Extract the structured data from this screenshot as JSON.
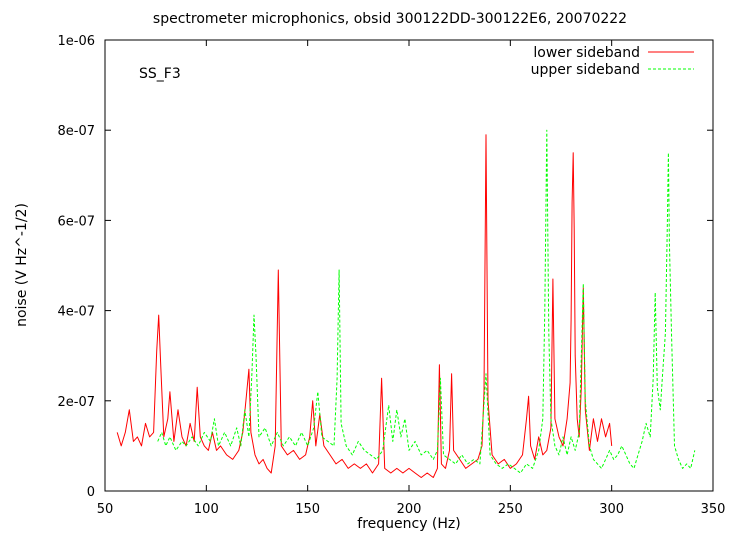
{
  "chart_data": {
    "type": "line",
    "title": "spectrometer microphonics, obsid 300122DD-300122E6, 20070222",
    "xlabel": "frequency (Hz)",
    "ylabel": "noise (V Hz^-1/2)",
    "annotation": "SS_F3",
    "xlim": [
      50,
      350
    ],
    "ylim": [
      0,
      1e-06
    ],
    "x_ticks": [
      50,
      100,
      150,
      200,
      250,
      300,
      350
    ],
    "x_tick_labels": [
      "50",
      "100",
      "150",
      "200",
      "250",
      "300",
      "350"
    ],
    "y_ticks": [
      0,
      2e-07,
      4e-07,
      6e-07,
      8e-07,
      1e-06
    ],
    "y_tick_labels": [
      "0",
      "2e-07",
      "4e-07",
      "6e-07",
      "8e-07",
      "1e-06"
    ],
    "grid": false,
    "legend_position": "top-right",
    "colors": {
      "lower": "#ff0000",
      "upper": "#00ff00",
      "axis": "#000000"
    },
    "series": [
      {
        "name": "lower sideband",
        "color": "#ff0000",
        "dash": "solid",
        "points": [
          [
            56,
            1.3e-07
          ],
          [
            58,
            1e-07
          ],
          [
            60,
            1.3e-07
          ],
          [
            62,
            1.8e-07
          ],
          [
            64,
            1.1e-07
          ],
          [
            66,
            1.2e-07
          ],
          [
            68,
            1e-07
          ],
          [
            70,
            1.5e-07
          ],
          [
            72,
            1.2e-07
          ],
          [
            74,
            1.3e-07
          ],
          [
            75.5,
            3.1e-07
          ],
          [
            76.5,
            3.9e-07
          ],
          [
            77.5,
            2.8e-07
          ],
          [
            79,
            1.2e-07
          ],
          [
            81,
            1.6e-07
          ],
          [
            82,
            2.2e-07
          ],
          [
            84,
            1.1e-07
          ],
          [
            86,
            1.8e-07
          ],
          [
            88,
            1.2e-07
          ],
          [
            90,
            1e-07
          ],
          [
            92,
            1.5e-07
          ],
          [
            94,
            1.1e-07
          ],
          [
            95.5,
            2.3e-07
          ],
          [
            97,
            1.2e-07
          ],
          [
            99,
            1e-07
          ],
          [
            101,
            9e-08
          ],
          [
            103,
            1.3e-07
          ],
          [
            105,
            9e-08
          ],
          [
            107,
            1e-07
          ],
          [
            110,
            8e-08
          ],
          [
            113,
            7e-08
          ],
          [
            116,
            9e-08
          ],
          [
            118,
            1.3e-07
          ],
          [
            119.5,
            2e-07
          ],
          [
            121,
            2.7e-07
          ],
          [
            122,
            1.3e-07
          ],
          [
            124,
            8e-08
          ],
          [
            126,
            6e-08
          ],
          [
            128,
            7e-08
          ],
          [
            130,
            5e-08
          ],
          [
            132,
            4e-08
          ],
          [
            134,
            1e-07
          ],
          [
            135.5,
            4.9e-07
          ],
          [
            137,
            1e-07
          ],
          [
            140,
            8e-08
          ],
          [
            143,
            9e-08
          ],
          [
            146,
            7e-08
          ],
          [
            149,
            8e-08
          ],
          [
            151,
            1.2e-07
          ],
          [
            152.5,
            2e-07
          ],
          [
            154,
            1e-07
          ],
          [
            156,
            1.7e-07
          ],
          [
            158,
            1e-07
          ],
          [
            161,
            8e-08
          ],
          [
            164,
            6e-08
          ],
          [
            167,
            7e-08
          ],
          [
            170,
            5e-08
          ],
          [
            173,
            6e-08
          ],
          [
            176,
            5e-08
          ],
          [
            179,
            6e-08
          ],
          [
            182,
            4e-08
          ],
          [
            185,
            6e-08
          ],
          [
            186.5,
            2.5e-07
          ],
          [
            188,
            5e-08
          ],
          [
            191,
            4e-08
          ],
          [
            194,
            5e-08
          ],
          [
            197,
            4e-08
          ],
          [
            200,
            5e-08
          ],
          [
            203,
            4e-08
          ],
          [
            206,
            3e-08
          ],
          [
            209,
            4e-08
          ],
          [
            212,
            3e-08
          ],
          [
            214,
            5e-08
          ],
          [
            215,
            2.8e-07
          ],
          [
            216,
            6e-08
          ],
          [
            218,
            5e-08
          ],
          [
            220,
            9e-08
          ],
          [
            221,
            2.6e-07
          ],
          [
            222,
            9e-08
          ],
          [
            225,
            7e-08
          ],
          [
            228,
            5e-08
          ],
          [
            231,
            6e-08
          ],
          [
            234,
            7e-08
          ],
          [
            236,
            1e-07
          ],
          [
            237,
            2.2e-07
          ],
          [
            238,
            7.9e-07
          ],
          [
            239,
            2e-07
          ],
          [
            241,
            8e-08
          ],
          [
            244,
            6e-08
          ],
          [
            247,
            7e-08
          ],
          [
            250,
            5e-08
          ],
          [
            253,
            6e-08
          ],
          [
            256,
            8e-08
          ],
          [
            258,
            1.6e-07
          ],
          [
            259,
            2.1e-07
          ],
          [
            260,
            1e-07
          ],
          [
            262,
            7e-08
          ],
          [
            264,
            1.2e-07
          ],
          [
            266,
            8e-08
          ],
          [
            268,
            9e-08
          ],
          [
            270,
            1.4e-07
          ],
          [
            271,
            4.7e-07
          ],
          [
            272,
            1.6e-07
          ],
          [
            274,
            1.2e-07
          ],
          [
            276,
            1e-07
          ],
          [
            278,
            1.6e-07
          ],
          [
            279.5,
            2.4e-07
          ],
          [
            280,
            3.8e-07
          ],
          [
            280.5,
            6.4e-07
          ],
          [
            281,
            7.5e-07
          ],
          [
            281.5,
            5.8e-07
          ],
          [
            282,
            3e-07
          ],
          [
            283,
            1.6e-07
          ],
          [
            284,
            1.2e-07
          ],
          [
            285,
            2.3e-07
          ],
          [
            286,
            4.5e-07
          ],
          [
            287,
            1.8e-07
          ],
          [
            289,
            9e-08
          ],
          [
            291,
            1.6e-07
          ],
          [
            293,
            1.1e-07
          ],
          [
            295,
            1.6e-07
          ],
          [
            297,
            1.2e-07
          ],
          [
            299,
            1.5e-07
          ],
          [
            300,
            1e-07
          ]
        ]
      },
      {
        "name": "upper sideband",
        "color": "#00ff00",
        "dash": "dashed",
        "points": [
          [
            76,
            1.1e-07
          ],
          [
            78,
            1.3e-07
          ],
          [
            80,
            1e-07
          ],
          [
            82,
            1.2e-07
          ],
          [
            85,
            9e-08
          ],
          [
            88,
            1.1e-07
          ],
          [
            90,
            1e-07
          ],
          [
            93,
            1.2e-07
          ],
          [
            96,
            1e-07
          ],
          [
            99,
            1.3e-07
          ],
          [
            102,
            1.1e-07
          ],
          [
            104,
            1.6e-07
          ],
          [
            106,
            1e-07
          ],
          [
            109,
            1.3e-07
          ],
          [
            112,
            1e-07
          ],
          [
            115,
            1.4e-07
          ],
          [
            117,
            1e-07
          ],
          [
            119,
            1.8e-07
          ],
          [
            121,
            1.2e-07
          ],
          [
            122.5,
            2.6e-07
          ],
          [
            123.5,
            3.9e-07
          ],
          [
            124.5,
            3e-07
          ],
          [
            126,
            1.2e-07
          ],
          [
            129,
            1.4e-07
          ],
          [
            132,
            1e-07
          ],
          [
            135,
            1.3e-07
          ],
          [
            138,
            1e-07
          ],
          [
            141,
            1.2e-07
          ],
          [
            144,
            1e-07
          ],
          [
            147,
            1.3e-07
          ],
          [
            150,
            1e-07
          ],
          [
            153,
            1.4e-07
          ],
          [
            155,
            2.2e-07
          ],
          [
            157,
            1.2e-07
          ],
          [
            160,
            1.1e-07
          ],
          [
            163,
            1e-07
          ],
          [
            164.5,
            2.5e-07
          ],
          [
            165.5,
            4.9e-07
          ],
          [
            166.5,
            1.5e-07
          ],
          [
            169,
            1e-07
          ],
          [
            172,
            8e-08
          ],
          [
            175,
            1.1e-07
          ],
          [
            178,
            9e-08
          ],
          [
            181,
            8e-08
          ],
          [
            184,
            7e-08
          ],
          [
            187,
            9e-08
          ],
          [
            190,
            1.9e-07
          ],
          [
            192,
            1.1e-07
          ],
          [
            194,
            1.8e-07
          ],
          [
            196,
            1.2e-07
          ],
          [
            198,
            1.6e-07
          ],
          [
            200,
            9e-08
          ],
          [
            203,
            1.1e-07
          ],
          [
            206,
            8e-08
          ],
          [
            209,
            9e-08
          ],
          [
            212,
            7e-08
          ],
          [
            214,
            9e-08
          ],
          [
            215.5,
            2.5e-07
          ],
          [
            217,
            8e-08
          ],
          [
            220,
            7e-08
          ],
          [
            223,
            6e-08
          ],
          [
            226,
            8e-08
          ],
          [
            229,
            6e-08
          ],
          [
            232,
            7e-08
          ],
          [
            235,
            6e-08
          ],
          [
            238,
            2.6e-07
          ],
          [
            240,
            8e-08
          ],
          [
            243,
            6e-08
          ],
          [
            246,
            5e-08
          ],
          [
            249,
            6e-08
          ],
          [
            252,
            5e-08
          ],
          [
            255,
            4e-08
          ],
          [
            258,
            6e-08
          ],
          [
            261,
            5e-08
          ],
          [
            264,
            9e-08
          ],
          [
            266,
            1.6e-07
          ],
          [
            267,
            4e-07
          ],
          [
            268,
            8e-07
          ],
          [
            269,
            3.5e-07
          ],
          [
            270,
            1.6e-07
          ],
          [
            272,
            1e-07
          ],
          [
            274,
            8e-08
          ],
          [
            276,
            1.2e-07
          ],
          [
            278,
            8e-08
          ],
          [
            280,
            1.2e-07
          ],
          [
            282,
            9e-08
          ],
          [
            284,
            1.3e-07
          ],
          [
            286,
            4.6e-07
          ],
          [
            287,
            2e-07
          ],
          [
            289,
            1e-07
          ],
          [
            291,
            7e-08
          ],
          [
            293,
            6e-08
          ],
          [
            295,
            5e-08
          ],
          [
            297,
            7e-08
          ],
          [
            299,
            9e-08
          ],
          [
            301,
            7e-08
          ],
          [
            303,
            8e-08
          ],
          [
            305,
            1e-07
          ],
          [
            307,
            8e-08
          ],
          [
            309,
            6e-08
          ],
          [
            311,
            5e-08
          ],
          [
            313,
            8e-08
          ],
          [
            315,
            1.1e-07
          ],
          [
            317,
            1.5e-07
          ],
          [
            319,
            1.2e-07
          ],
          [
            320.5,
            2.5e-07
          ],
          [
            321.5,
            4.4e-07
          ],
          [
            322.5,
            2.3e-07
          ],
          [
            324,
            1.8e-07
          ],
          [
            325,
            2.5e-07
          ],
          [
            326.5,
            3.5e-07
          ],
          [
            327.5,
            6e-07
          ],
          [
            328,
            7.5e-07
          ],
          [
            328.5,
            5.5e-07
          ],
          [
            329.5,
            3.5e-07
          ],
          [
            331,
            1e-07
          ],
          [
            333,
            7e-08
          ],
          [
            335,
            5e-08
          ],
          [
            337,
            6e-08
          ],
          [
            339,
            5e-08
          ],
          [
            341,
            9e-08
          ]
        ]
      }
    ]
  }
}
